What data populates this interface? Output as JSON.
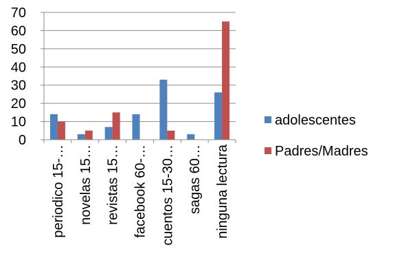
{
  "chart_data": {
    "type": "bar",
    "title": "",
    "xlabel": "",
    "ylabel": "",
    "categories": [
      "periodico 15-…",
      "novelas 15…",
      "revistas 15…",
      "facebook 60-…",
      "cuentos 15-30…",
      "sagas 60…",
      "ninguna lectura"
    ],
    "series": [
      {
        "name": "adolescentes",
        "color": "#4F81BD",
        "values": [
          14,
          3,
          7,
          14,
          33,
          3,
          26
        ]
      },
      {
        "name": "Padres/Madres",
        "color": "#C0504D",
        "values": [
          10,
          5,
          15,
          0,
          5,
          0,
          65
        ]
      }
    ],
    "ylim": [
      0,
      70
    ],
    "yticks": [
      0,
      10,
      20,
      30,
      40,
      50,
      60,
      70
    ],
    "grid": true,
    "legend_position": "right"
  }
}
